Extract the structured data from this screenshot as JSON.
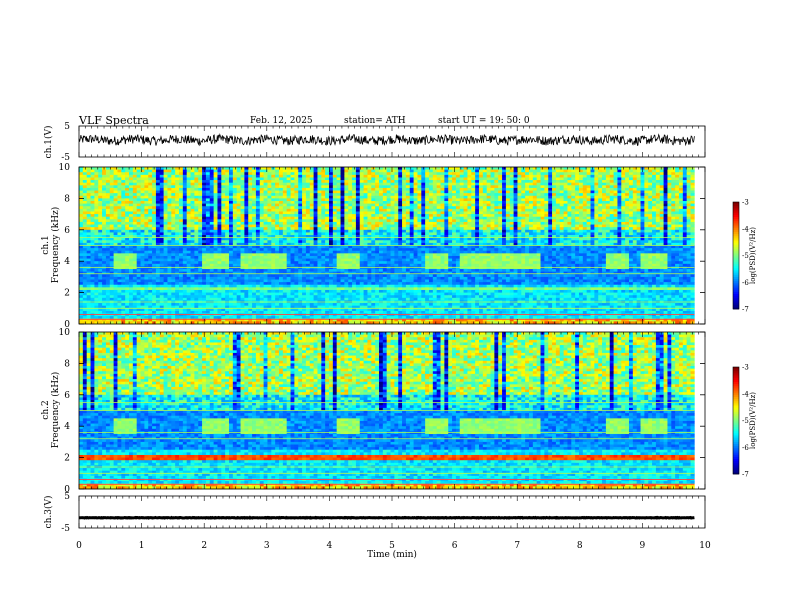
{
  "header": {
    "title": "VLF  Spectra",
    "date": "Feb. 12, 2025",
    "station": "station= ATH",
    "start": "start  UT  =    19: 50: 0"
  },
  "chart_data": [
    {
      "type": "line",
      "panel": "ch1-waveform",
      "ylabel": "ch.1(V)",
      "ylim": [
        -5,
        5
      ],
      "y_ticks": [
        "5",
        "-5"
      ],
      "xlim": [
        0,
        10
      ],
      "x_unit": "min",
      "value_level": 0.5,
      "amplitude": 1.5,
      "color": "#000000"
    },
    {
      "type": "heatmap",
      "panel": "ch1-spectrogram",
      "ylabel": "ch.1\nFrequency  (kHz)",
      "ylim": [
        0,
        10
      ],
      "y_ticks": [
        "0",
        "2",
        "4",
        "6",
        "8",
        "10"
      ],
      "xlim": [
        0,
        9.83
      ],
      "colorbar": {
        "label": "log(PSD)(V²/Hz)",
        "range": [
          -7,
          -3
        ],
        "ticks": [
          "-3",
          "-4",
          "-5",
          "-6",
          "-7"
        ]
      },
      "bursts_min": [
        [
          0.55,
          0.9
        ],
        [
          1.95,
          2.4
        ],
        [
          2.55,
          3.3
        ],
        [
          4.1,
          4.5
        ],
        [
          5.5,
          5.9
        ],
        [
          6.1,
          7.4
        ],
        [
          8.4,
          8.8
        ],
        [
          9.0,
          9.4
        ]
      ],
      "burst_band_khz": [
        3.5,
        4.5
      ]
    },
    {
      "type": "heatmap",
      "panel": "ch2-spectrogram",
      "ylabel": "ch.2\nFrequency  (kHz)",
      "ylim": [
        0,
        10
      ],
      "y_ticks": [
        "0",
        "2",
        "4",
        "6",
        "8",
        "10"
      ],
      "xlim": [
        0,
        9.83
      ],
      "colorbar": {
        "label": "log(PSD)(V²/Hz)",
        "range": [
          -7,
          -3
        ],
        "ticks": [
          "-3",
          "-4",
          "-5",
          "-6",
          "-7"
        ]
      },
      "bursts_min": [
        [
          0.55,
          0.9
        ],
        [
          1.95,
          2.4
        ],
        [
          2.55,
          3.3
        ],
        [
          4.1,
          4.5
        ],
        [
          5.5,
          5.9
        ],
        [
          6.1,
          7.4
        ],
        [
          8.4,
          8.8
        ],
        [
          9.0,
          9.4
        ]
      ],
      "burst_band_khz": [
        3.5,
        4.5
      ]
    },
    {
      "type": "line",
      "panel": "ch3-waveform",
      "ylabel": "ch.3(V)",
      "ylim": [
        -5,
        5
      ],
      "y_ticks": [
        "5",
        "-5"
      ],
      "xlim": [
        0,
        10
      ],
      "value_level": -1.8,
      "amplitude": 0.15,
      "color": "#000000"
    }
  ],
  "x_axis": {
    "label": "Time  (min)",
    "ticks": [
      "0",
      "1",
      "2",
      "3",
      "4",
      "5",
      "6",
      "7",
      "8",
      "9",
      "10"
    ]
  }
}
